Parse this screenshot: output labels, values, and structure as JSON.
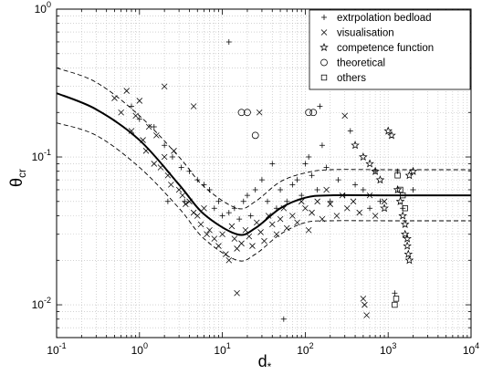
{
  "chart_data": {
    "type": "scatter",
    "title": "",
    "xlabel": "d",
    "xlabel_sub": "*",
    "ylabel": "θ",
    "ylabel_sub": "cr",
    "xscale": "log",
    "yscale": "log",
    "xlim": [
      0.1,
      10000
    ],
    "ylim": [
      0.006,
      1
    ],
    "grid": true,
    "legend_position": "top-right",
    "x_ticks": [
      {
        "value": 0.1,
        "base": "10",
        "exp": "-1"
      },
      {
        "value": 1,
        "base": "10",
        "exp": "0"
      },
      {
        "value": 10,
        "base": "10",
        "exp": "1"
      },
      {
        "value": 100,
        "base": "10",
        "exp": "2"
      },
      {
        "value": 1000,
        "base": "10",
        "exp": "3"
      },
      {
        "value": 10000,
        "base": "10",
        "exp": "4"
      }
    ],
    "y_ticks": [
      {
        "value": 0.01,
        "base": "10",
        "exp": "-2"
      },
      {
        "value": 0.1,
        "base": "10",
        "exp": "-1"
      },
      {
        "value": 1,
        "base": "10",
        "exp": "0"
      }
    ],
    "curves": [
      {
        "style": "solid",
        "points": [
          [
            0.1,
            0.27
          ],
          [
            0.3,
            0.21
          ],
          [
            1,
            0.13
          ],
          [
            3,
            0.065
          ],
          [
            6,
            0.041
          ],
          [
            15,
            0.03
          ],
          [
            25,
            0.033
          ],
          [
            50,
            0.045
          ],
          [
            100,
            0.053
          ],
          [
            200,
            0.055
          ],
          [
            1000,
            0.055
          ],
          [
            10000,
            0.055
          ]
        ]
      },
      {
        "style": "dashed",
        "points": [
          [
            0.1,
            0.4
          ],
          [
            0.3,
            0.32
          ],
          [
            1,
            0.19
          ],
          [
            3,
            0.1
          ],
          [
            6,
            0.063
          ],
          [
            15,
            0.045
          ],
          [
            25,
            0.05
          ],
          [
            50,
            0.068
          ],
          [
            100,
            0.078
          ],
          [
            200,
            0.082
          ],
          [
            1000,
            0.082
          ],
          [
            10000,
            0.082
          ]
        ]
      },
      {
        "style": "dashed",
        "points": [
          [
            0.1,
            0.17
          ],
          [
            0.3,
            0.14
          ],
          [
            1,
            0.085
          ],
          [
            3,
            0.045
          ],
          [
            6,
            0.028
          ],
          [
            15,
            0.02
          ],
          [
            25,
            0.022
          ],
          [
            50,
            0.03
          ],
          [
            100,
            0.036
          ],
          [
            200,
            0.037
          ],
          [
            1000,
            0.037
          ],
          [
            10000,
            0.037
          ]
        ]
      }
    ],
    "series": [
      {
        "name": "extrpolation bedload",
        "marker": "plus",
        "points": [
          [
            0.8,
            0.22
          ],
          [
            1.0,
            0.18
          ],
          [
            1.5,
            0.16
          ],
          [
            2.0,
            0.12
          ],
          [
            2.5,
            0.1
          ],
          [
            3.2,
            0.085
          ],
          [
            4,
            0.08
          ],
          [
            5,
            0.07
          ],
          [
            6,
            0.065
          ],
          [
            7,
            0.06
          ],
          [
            8,
            0.045
          ],
          [
            9,
            0.05
          ],
          [
            10,
            0.04
          ],
          [
            12,
            0.042
          ],
          [
            14,
            0.045
          ],
          [
            16,
            0.038
          ],
          [
            18,
            0.05
          ],
          [
            20,
            0.055
          ],
          [
            22,
            0.04
          ],
          [
            25,
            0.06
          ],
          [
            30,
            0.07
          ],
          [
            35,
            0.05
          ],
          [
            40,
            0.09
          ],
          [
            45,
            0.045
          ],
          [
            50,
            0.06
          ],
          [
            55,
            0.008
          ],
          [
            60,
            0.05
          ],
          [
            70,
            0.065
          ],
          [
            80,
            0.07
          ],
          [
            90,
            0.055
          ],
          [
            100,
            0.09
          ],
          [
            110,
            0.1
          ],
          [
            120,
            0.075
          ],
          [
            140,
            0.06
          ],
          [
            160,
            0.12
          ],
          [
            180,
            0.085
          ],
          [
            200,
            0.05
          ],
          [
            250,
            0.07
          ],
          [
            300,
            0.055
          ],
          [
            350,
            0.15
          ],
          [
            400,
            0.065
          ],
          [
            500,
            0.06
          ],
          [
            600,
            0.045
          ],
          [
            700,
            0.08
          ],
          [
            800,
            0.05
          ],
          [
            1200,
            0.012
          ],
          [
            1300,
            0.08
          ],
          [
            1500,
            0.045
          ],
          [
            2000,
            0.06
          ],
          [
            12,
            0.6
          ],
          [
            150,
            0.22
          ],
          [
            2.2,
            0.05
          ],
          [
            3.5,
            0.05
          ]
        ]
      },
      {
        "name": "visualisation",
        "marker": "cross",
        "points": [
          [
            0.5,
            0.25
          ],
          [
            0.6,
            0.2
          ],
          [
            0.7,
            0.28
          ],
          [
            0.8,
            0.15
          ],
          [
            0.9,
            0.19
          ],
          [
            1.0,
            0.24
          ],
          [
            1.1,
            0.13
          ],
          [
            1.2,
            0.11
          ],
          [
            1.3,
            0.16
          ],
          [
            1.5,
            0.09
          ],
          [
            1.6,
            0.14
          ],
          [
            1.8,
            0.085
          ],
          [
            2.0,
            0.1
          ],
          [
            2.2,
            0.075
          ],
          [
            2.4,
            0.065
          ],
          [
            2.6,
            0.11
          ],
          [
            3.0,
            0.06
          ],
          [
            3.3,
            0.055
          ],
          [
            3.6,
            0.048
          ],
          [
            4.0,
            0.05
          ],
          [
            4.5,
            0.042
          ],
          [
            5.0,
            0.04
          ],
          [
            5.5,
            0.035
          ],
          [
            6.0,
            0.045
          ],
          [
            6.5,
            0.03
          ],
          [
            7.0,
            0.032
          ],
          [
            8.0,
            0.028
          ],
          [
            9.0,
            0.025
          ],
          [
            10,
            0.03
          ],
          [
            11,
            0.022
          ],
          [
            12,
            0.02
          ],
          [
            13,
            0.034
          ],
          [
            14,
            0.028
          ],
          [
            15,
            0.024
          ],
          [
            17,
            0.026
          ],
          [
            19,
            0.032
          ],
          [
            21,
            0.029
          ],
          [
            23,
            0.025
          ],
          [
            26,
            0.036
          ],
          [
            29,
            0.031
          ],
          [
            32,
            0.027
          ],
          [
            36,
            0.04
          ],
          [
            40,
            0.035
          ],
          [
            45,
            0.03
          ],
          [
            50,
            0.038
          ],
          [
            55,
            0.045
          ],
          [
            60,
            0.033
          ],
          [
            70,
            0.04
          ],
          [
            80,
            0.036
          ],
          [
            90,
            0.05
          ],
          [
            100,
            0.045
          ],
          [
            110,
            0.032
          ],
          [
            120,
            0.042
          ],
          [
            140,
            0.05
          ],
          [
            160,
            0.038
          ],
          [
            180,
            0.06
          ],
          [
            200,
            0.048
          ],
          [
            240,
            0.04
          ],
          [
            280,
            0.055
          ],
          [
            320,
            0.045
          ],
          [
            380,
            0.05
          ],
          [
            450,
            0.042
          ],
          [
            500,
            0.011
          ],
          [
            520,
            0.01
          ],
          [
            550,
            0.0085
          ],
          [
            600,
            0.055
          ],
          [
            700,
            0.04
          ],
          [
            900,
            0.05
          ],
          [
            2.0,
            0.3
          ],
          [
            4.5,
            0.22
          ],
          [
            28,
            0.2
          ],
          [
            300,
            0.19
          ],
          [
            15,
            0.012
          ]
        ]
      },
      {
        "name": "competence function",
        "marker": "star",
        "points": [
          [
            400,
            0.12
          ],
          [
            500,
            0.1
          ],
          [
            600,
            0.09
          ],
          [
            700,
            0.08
          ],
          [
            800,
            0.07
          ],
          [
            1000,
            0.15
          ],
          [
            1100,
            0.14
          ],
          [
            1300,
            0.06
          ],
          [
            1400,
            0.05
          ],
          [
            1500,
            0.04
          ],
          [
            1600,
            0.035
          ],
          [
            1700,
            0.025
          ],
          [
            1750,
            0.022
          ],
          [
            1800,
            0.02
          ],
          [
            1600,
            0.03
          ],
          [
            1700,
            0.028
          ],
          [
            1800,
            0.075
          ],
          [
            2000,
            0.08
          ],
          [
            900,
            0.045
          ]
        ]
      },
      {
        "name": "theoretical",
        "marker": "circle",
        "points": [
          [
            17,
            0.2
          ],
          [
            20,
            0.2
          ],
          [
            25,
            0.14
          ],
          [
            110,
            0.2
          ],
          [
            125,
            0.2
          ]
        ]
      },
      {
        "name": "others",
        "marker": "square",
        "points": [
          [
            1200,
            0.01
          ],
          [
            1250,
            0.011
          ],
          [
            1300,
            0.075
          ],
          [
            1400,
            0.06
          ],
          [
            1500,
            0.055
          ],
          [
            1600,
            0.045
          ]
        ]
      }
    ]
  }
}
